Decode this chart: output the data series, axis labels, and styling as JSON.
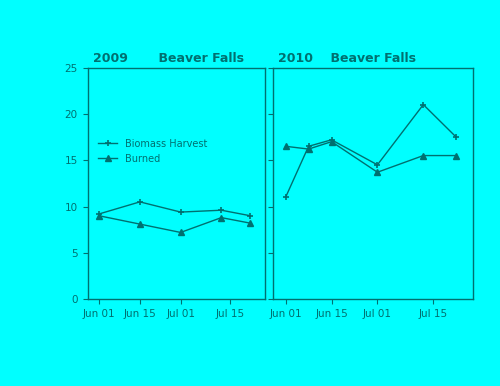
{
  "background_color": "#00FFFF",
  "plot_bg_color": "#00FFFF",
  "line_color": "#007070",
  "title_2009": "2009       Beaver Falls",
  "title_2010": "2010    Beaver Falls",
  "ylim": [
    0,
    25
  ],
  "yticks": [
    0,
    5,
    10,
    15,
    20,
    25
  ],
  "xtick_labels": [
    "Jun 01",
    "Jun 15",
    "Jul 01",
    "Jul 15"
  ],
  "legend_labels": [
    "Biomass Harvest",
    "Burned"
  ],
  "biomass_2009": [
    9.2,
    10.5,
    9.4,
    9.6,
    9.0
  ],
  "burned_2009": [
    9.0,
    8.1,
    7.2,
    8.8,
    8.2
  ],
  "biomass_2010": [
    11.0,
    16.5,
    17.2,
    14.5,
    21.0,
    17.5
  ],
  "burned_2010": [
    16.5,
    16.2,
    17.0,
    13.7,
    15.5,
    15.5
  ],
  "x2009": [
    0,
    14,
    28,
    42,
    52
  ],
  "x2010": [
    0,
    7,
    14,
    28,
    42,
    52
  ],
  "title_fontsize": 9,
  "tick_fontsize": 7.5,
  "legend_fontsize": 7,
  "marker_size": 4,
  "line_width": 1.0
}
